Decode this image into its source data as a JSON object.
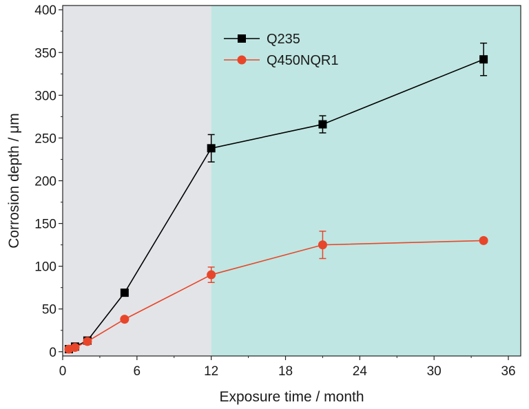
{
  "chart_data": {
    "type": "line",
    "xlabel": "Exposure time / month",
    "ylabel": "Corrosion depth / μm",
    "xlim": [
      0,
      37
    ],
    "ylim": [
      -5,
      405
    ],
    "xticks": [
      0,
      6,
      12,
      18,
      24,
      30,
      36
    ],
    "yticks": [
      0,
      50,
      100,
      150,
      200,
      250,
      300,
      350,
      400
    ],
    "xtick_labels": [
      "0",
      "6",
      "12",
      "18",
      "24",
      "30",
      "36"
    ],
    "ytick_labels": [
      "0",
      "50",
      "100",
      "150",
      "200",
      "250",
      "300",
      "350",
      "400"
    ],
    "grid": false,
    "legend_position": "top-center",
    "shaded_regions": [
      {
        "x_from": 0,
        "x_to": 12,
        "color": "#e3e4e8"
      },
      {
        "x_from": 12,
        "x_to": 37,
        "color": "#bfe6e2"
      }
    ],
    "series": [
      {
        "name": "Q235",
        "color": "#000000",
        "marker": "square",
        "x": [
          0.5,
          1,
          2,
          5,
          12,
          21,
          34
        ],
        "y": [
          3,
          6,
          13,
          69,
          238,
          266,
          342
        ],
        "err": [
          2,
          2,
          3,
          0,
          16,
          10,
          19
        ]
      },
      {
        "name": "Q450NQR1",
        "color": "#e8462a",
        "marker": "circle",
        "x": [
          0.5,
          1,
          2,
          5,
          12,
          21,
          34
        ],
        "y": [
          3,
          5,
          12,
          38,
          90,
          125,
          130
        ],
        "err": [
          2,
          2,
          3,
          0,
          9,
          16,
          0
        ]
      }
    ]
  }
}
